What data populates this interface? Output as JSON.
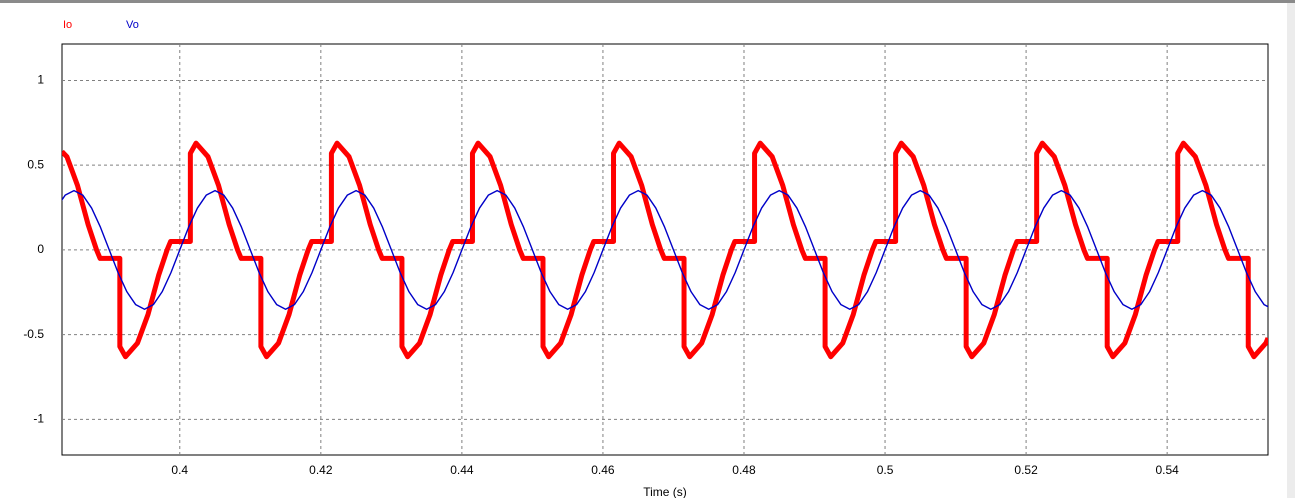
{
  "chart_data": {
    "type": "line",
    "xlabel": "Time (s)",
    "grid": true,
    "xlim": [
      0.3833,
      0.5543
    ],
    "ylim": [
      -1.21,
      1.215
    ],
    "xticks": [
      0.4,
      0.42,
      0.44,
      0.46,
      0.48,
      0.5,
      0.52,
      0.54
    ],
    "yticks": [
      -1,
      -0.5,
      0,
      0.5,
      1
    ],
    "series": [
      {
        "name": "Io",
        "color": "#ff0000",
        "x": [
          0.3833,
          0.384,
          0.3855,
          0.387,
          0.3882,
          0.3887,
          0.3915,
          0.3915,
          0.3923,
          0.394,
          0.3955,
          0.397,
          0.3982,
          0.3987,
          0.4015,
          0.4015,
          0.4023,
          0.404,
          0.4055,
          0.407,
          0.4082,
          0.4087,
          0.4115,
          0.4115,
          0.4123,
          0.414,
          0.4155,
          0.417,
          0.4182,
          0.4187,
          0.4215,
          0.4215,
          0.4223,
          0.424,
          0.4255,
          0.427,
          0.4282,
          0.4287,
          0.4315,
          0.4315,
          0.4323,
          0.434,
          0.4355,
          0.437,
          0.4382,
          0.4387,
          0.4415,
          0.4415,
          0.4423,
          0.444,
          0.4455,
          0.447,
          0.4482,
          0.4487,
          0.4515,
          0.4515,
          0.4523,
          0.454,
          0.4555,
          0.457,
          0.4582,
          0.4587,
          0.4615,
          0.4615,
          0.4623,
          0.464,
          0.4655,
          0.467,
          0.4682,
          0.4687,
          0.4715,
          0.4715,
          0.4723,
          0.474,
          0.4755,
          0.477,
          0.4782,
          0.4787,
          0.4815,
          0.4815,
          0.4823,
          0.484,
          0.4855,
          0.487,
          0.4882,
          0.4887,
          0.4915,
          0.4915,
          0.4923,
          0.494,
          0.4955,
          0.497,
          0.4982,
          0.4987,
          0.5015,
          0.5015,
          0.5023,
          0.504,
          0.5055,
          0.507,
          0.5082,
          0.5087,
          0.5115,
          0.5115,
          0.5123,
          0.514,
          0.5155,
          0.517,
          0.5182,
          0.5187,
          0.5215,
          0.5215,
          0.5223,
          0.524,
          0.5255,
          0.527,
          0.5282,
          0.5287,
          0.5315,
          0.5315,
          0.5323,
          0.534,
          0.5355,
          0.537,
          0.5382,
          0.5387,
          0.5415,
          0.5415,
          0.5423,
          0.544,
          0.5455,
          0.547,
          0.5482,
          0.5487,
          0.5515,
          0.5515,
          0.5523,
          0.554,
          0.5543
        ],
        "values": [
          0.58,
          0.55,
          0.38,
          0.15,
          0,
          -0.05,
          -0.05,
          -0.57,
          -0.63,
          -0.55,
          -0.38,
          -0.15,
          0,
          0.05,
          0.05,
          0.57,
          0.63,
          0.55,
          0.38,
          0.15,
          0,
          -0.05,
          -0.05,
          -0.57,
          -0.63,
          -0.55,
          -0.38,
          -0.15,
          0,
          0.05,
          0.05,
          0.57,
          0.63,
          0.55,
          0.38,
          0.15,
          0,
          -0.05,
          -0.05,
          -0.57,
          -0.63,
          -0.55,
          -0.38,
          -0.15,
          0,
          0.05,
          0.05,
          0.57,
          0.63,
          0.55,
          0.38,
          0.15,
          0,
          -0.05,
          -0.05,
          -0.57,
          -0.63,
          -0.55,
          -0.38,
          -0.15,
          0,
          0.05,
          0.05,
          0.57,
          0.63,
          0.55,
          0.38,
          0.15,
          0,
          -0.05,
          -0.05,
          -0.57,
          -0.63,
          -0.55,
          -0.38,
          -0.15,
          0,
          0.05,
          0.05,
          0.57,
          0.63,
          0.55,
          0.38,
          0.15,
          0,
          -0.05,
          -0.05,
          -0.57,
          -0.63,
          -0.55,
          -0.38,
          -0.15,
          0,
          0.05,
          0.05,
          0.57,
          0.63,
          0.55,
          0.38,
          0.15,
          0,
          -0.05,
          -0.05,
          -0.57,
          -0.63,
          -0.55,
          -0.38,
          -0.15,
          0,
          0.05,
          0.05,
          0.57,
          0.63,
          0.55,
          0.38,
          0.15,
          0,
          -0.05,
          -0.05,
          -0.57,
          -0.63,
          -0.55,
          -0.38,
          -0.15,
          0,
          0.05,
          0.05,
          0.57,
          0.63,
          0.55,
          0.38,
          0.15,
          0,
          -0.05,
          -0.05,
          -0.57,
          -0.63,
          -0.55,
          -0.52
        ]
      },
      {
        "name": "Vo",
        "color": "#0000c8",
        "x": [
          0.3825,
          0.38375,
          0.385,
          0.38625,
          0.3875,
          0.38875,
          0.39,
          0.39125,
          0.3925,
          0.39375,
          0.395,
          0.39625,
          0.3975,
          0.39875,
          0.4,
          0.40125,
          0.4025,
          0.40375,
          0.405,
          0.40625,
          0.4075,
          0.40875,
          0.41,
          0.41125,
          0.4125,
          0.41375,
          0.415,
          0.41625,
          0.4175,
          0.41875,
          0.42,
          0.42125,
          0.4225,
          0.42375,
          0.425,
          0.42625,
          0.4275,
          0.42875,
          0.43,
          0.43125,
          0.4325,
          0.43375,
          0.435,
          0.43625,
          0.4375,
          0.43875,
          0.44,
          0.44125,
          0.4425,
          0.44375,
          0.445,
          0.44625,
          0.4475,
          0.44875,
          0.45,
          0.45125,
          0.4525,
          0.45375,
          0.455,
          0.45625,
          0.4575,
          0.45875,
          0.46,
          0.46125,
          0.4625,
          0.46375,
          0.465,
          0.46625,
          0.4675,
          0.46875,
          0.47,
          0.47125,
          0.4725,
          0.47375,
          0.475,
          0.47625,
          0.4775,
          0.47875,
          0.48,
          0.48125,
          0.4825,
          0.48375,
          0.485,
          0.48625,
          0.4875,
          0.48875,
          0.49,
          0.49125,
          0.4925,
          0.49375,
          0.495,
          0.49625,
          0.4975,
          0.49875,
          0.5,
          0.50125,
          0.5025,
          0.50375,
          0.505,
          0.50625,
          0.5075,
          0.50875,
          0.51,
          0.51125,
          0.5125,
          0.51375,
          0.515,
          0.51625,
          0.5175,
          0.51875,
          0.52,
          0.52125,
          0.5225,
          0.52375,
          0.525,
          0.52625,
          0.5275,
          0.52875,
          0.53,
          0.53125,
          0.5325,
          0.53375,
          0.535,
          0.53625,
          0.5375,
          0.53875,
          0.54,
          0.54125,
          0.5425,
          0.54375,
          0.545,
          0.54625,
          0.5475,
          0.54875,
          0.55,
          0.55125,
          0.5525,
          0.55375,
          0.555
        ],
        "values": [
          0.247,
          0.323,
          0.35,
          0.323,
          0.247,
          0.134,
          0,
          -0.134,
          -0.247,
          -0.323,
          -0.35,
          -0.323,
          -0.247,
          -0.134,
          0,
          0.134,
          0.247,
          0.323,
          0.35,
          0.323,
          0.247,
          0.134,
          0,
          -0.134,
          -0.247,
          -0.323,
          -0.35,
          -0.323,
          -0.247,
          -0.134,
          0,
          0.134,
          0.247,
          0.323,
          0.35,
          0.323,
          0.247,
          0.134,
          0,
          -0.134,
          -0.247,
          -0.323,
          -0.35,
          -0.323,
          -0.247,
          -0.134,
          0,
          0.134,
          0.247,
          0.323,
          0.35,
          0.323,
          0.247,
          0.134,
          0,
          -0.134,
          -0.247,
          -0.323,
          -0.35,
          -0.323,
          -0.247,
          -0.134,
          0,
          0.134,
          0.247,
          0.323,
          0.35,
          0.323,
          0.247,
          0.134,
          0,
          -0.134,
          -0.247,
          -0.323,
          -0.35,
          -0.323,
          -0.247,
          -0.134,
          0,
          0.134,
          0.247,
          0.323,
          0.35,
          0.323,
          0.247,
          0.134,
          0,
          -0.134,
          -0.247,
          -0.323,
          -0.35,
          -0.323,
          -0.247,
          -0.134,
          0,
          0.134,
          0.247,
          0.323,
          0.35,
          0.323,
          0.247,
          0.134,
          0,
          -0.134,
          -0.247,
          -0.323,
          -0.35,
          -0.323,
          -0.247,
          -0.134,
          0,
          0.134,
          0.247,
          0.323,
          0.35,
          0.323,
          0.247,
          0.134,
          0,
          -0.134,
          -0.247,
          -0.323,
          -0.35,
          -0.323,
          -0.247,
          -0.134,
          0,
          0.134,
          0.247,
          0.323,
          0.35,
          0.323,
          0.247,
          0.134,
          0,
          -0.134,
          -0.247,
          -0.323,
          -0.35
        ]
      }
    ]
  }
}
